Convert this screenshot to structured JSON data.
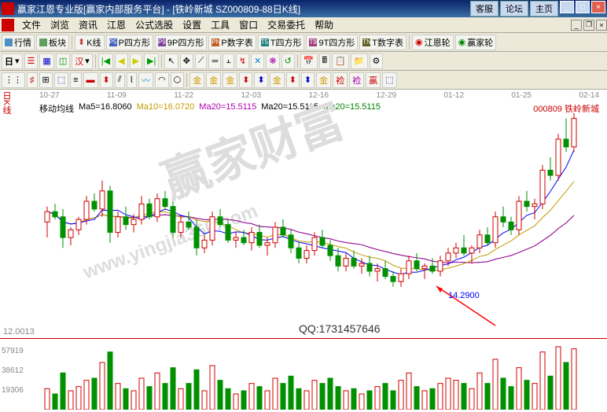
{
  "title": "赢家江恩专业版[赢家内部服务平台]  -  [铁岭新城   SZ000809-88日K线]",
  "headerBtns": {
    "kf": "客服",
    "lt": "论坛",
    "zy": "主页"
  },
  "menu": [
    "文件",
    "浏览",
    "资讯",
    "江恩",
    "公式选股",
    "设置",
    "工具",
    "窗口",
    "交易委托",
    "帮助"
  ],
  "tb1": {
    "hq": "行情",
    "bk": "板块",
    "kx": "K线",
    "pf": "P四方形",
    "pf9": "9P四方形",
    "psz": "P数字表",
    "tf": "T四方形",
    "tf9": "9T四方形",
    "tsz": "T数字表",
    "jel": "江恩轮",
    "yjl": "赢家轮"
  },
  "tb1Colors": {
    "hq": "#5090c0",
    "bk": "#60a060",
    "kx": "#c04040",
    "pf": "#4060c0",
    "pf9": "#8040a0",
    "psz": "#c06020",
    "tf": "#208080",
    "tf9": "#a04080",
    "tsz": "#606020"
  },
  "tb2": {
    "ri": "日"
  },
  "chart": {
    "ylabel": "日K线",
    "dates": [
      "10-27",
      "11-09",
      "11-22",
      "12-03",
      "12-16",
      "12-29",
      "01-12",
      "01-25",
      "02-14"
    ],
    "ma": {
      "label": "移动均线",
      "m5": "Ma5=16.8060",
      "m10": "Ma10=16.0720",
      "m20a": "Ma20=15.5115",
      "m20b": "Ma20=15.5115",
      "m20c": "Ma20=15.5115"
    },
    "maColors": {
      "m5": "#000",
      "m10": "#c49b00",
      "m20a": "#b000b0",
      "m20b": "#000",
      "m20c": "#008000"
    },
    "stockcode": "000809",
    "stockname": "铁岭新城",
    "ylim": [
      11.5,
      20
    ],
    "priceBase": 12.0013,
    "annotPrice": "14.2900",
    "annotX": 520,
    "annotY": 226,
    "candles": [
      {
        "x": 10,
        "o": 15.8,
        "h": 16.4,
        "l": 15.2,
        "c": 16.2,
        "u": 1
      },
      {
        "x": 20,
        "o": 16.2,
        "h": 16.5,
        "l": 15.9,
        "c": 16.0,
        "u": 0
      },
      {
        "x": 30,
        "o": 16.0,
        "h": 16.3,
        "l": 14.8,
        "c": 15.2,
        "u": 0
      },
      {
        "x": 40,
        "o": 15.2,
        "h": 15.6,
        "l": 14.9,
        "c": 15.5,
        "u": 1
      },
      {
        "x": 50,
        "o": 15.5,
        "h": 16.0,
        "l": 15.3,
        "c": 15.9,
        "u": 1
      },
      {
        "x": 60,
        "o": 15.9,
        "h": 16.8,
        "l": 15.7,
        "c": 16.6,
        "u": 1
      },
      {
        "x": 70,
        "o": 16.6,
        "h": 16.9,
        "l": 16.2,
        "c": 16.3,
        "u": 0
      },
      {
        "x": 80,
        "o": 16.3,
        "h": 17.4,
        "l": 16.0,
        "c": 17.0,
        "u": 1
      },
      {
        "x": 90,
        "o": 17.0,
        "h": 17.2,
        "l": 15.0,
        "c": 15.4,
        "u": 0
      },
      {
        "x": 100,
        "o": 15.4,
        "h": 16.2,
        "l": 15.2,
        "c": 16.0,
        "u": 1
      },
      {
        "x": 110,
        "o": 16.0,
        "h": 16.4,
        "l": 15.5,
        "c": 15.7,
        "u": 0
      },
      {
        "x": 120,
        "o": 15.7,
        "h": 16.1,
        "l": 15.4,
        "c": 15.9,
        "u": 1
      },
      {
        "x": 130,
        "o": 15.9,
        "h": 16.8,
        "l": 15.7,
        "c": 16.5,
        "u": 1
      },
      {
        "x": 140,
        "o": 16.5,
        "h": 16.7,
        "l": 15.9,
        "c": 16.0,
        "u": 0
      },
      {
        "x": 150,
        "o": 16.0,
        "h": 16.9,
        "l": 15.8,
        "c": 16.7,
        "u": 1
      },
      {
        "x": 160,
        "o": 16.7,
        "h": 17.0,
        "l": 16.3,
        "c": 16.4,
        "u": 0
      },
      {
        "x": 170,
        "o": 16.4,
        "h": 16.6,
        "l": 15.2,
        "c": 15.4,
        "u": 0
      },
      {
        "x": 180,
        "o": 15.4,
        "h": 16.0,
        "l": 15.2,
        "c": 15.8,
        "u": 1
      },
      {
        "x": 190,
        "o": 15.8,
        "h": 16.2,
        "l": 15.5,
        "c": 15.6,
        "u": 0
      },
      {
        "x": 200,
        "o": 15.6,
        "h": 15.9,
        "l": 14.5,
        "c": 14.8,
        "u": 0
      },
      {
        "x": 210,
        "o": 14.8,
        "h": 15.3,
        "l": 14.6,
        "c": 15.1,
        "u": 1
      },
      {
        "x": 220,
        "o": 15.1,
        "h": 16.2,
        "l": 14.9,
        "c": 16.0,
        "u": 1
      },
      {
        "x": 230,
        "o": 16.0,
        "h": 16.3,
        "l": 15.6,
        "c": 15.7,
        "u": 0
      },
      {
        "x": 240,
        "o": 15.7,
        "h": 15.9,
        "l": 15.0,
        "c": 15.1,
        "u": 0
      },
      {
        "x": 250,
        "o": 15.1,
        "h": 15.4,
        "l": 14.8,
        "c": 15.2,
        "u": 1
      },
      {
        "x": 260,
        "o": 15.2,
        "h": 15.5,
        "l": 14.9,
        "c": 15.0,
        "u": 0
      },
      {
        "x": 270,
        "o": 15.0,
        "h": 15.6,
        "l": 14.7,
        "c": 15.4,
        "u": 1
      },
      {
        "x": 280,
        "o": 15.4,
        "h": 15.7,
        "l": 14.8,
        "c": 14.9,
        "u": 0
      },
      {
        "x": 290,
        "o": 14.9,
        "h": 15.2,
        "l": 14.5,
        "c": 15.0,
        "u": 1
      },
      {
        "x": 300,
        "o": 15.0,
        "h": 15.8,
        "l": 14.8,
        "c": 15.6,
        "u": 1
      },
      {
        "x": 310,
        "o": 15.6,
        "h": 15.9,
        "l": 15.2,
        "c": 15.3,
        "u": 0
      },
      {
        "x": 320,
        "o": 15.3,
        "h": 15.5,
        "l": 14.6,
        "c": 14.8,
        "u": 0
      },
      {
        "x": 330,
        "o": 14.8,
        "h": 15.0,
        "l": 14.2,
        "c": 14.4,
        "u": 0
      },
      {
        "x": 340,
        "o": 14.4,
        "h": 14.9,
        "l": 14.2,
        "c": 14.7,
        "u": 1
      },
      {
        "x": 350,
        "o": 14.7,
        "h": 15.4,
        "l": 14.5,
        "c": 15.2,
        "u": 1
      },
      {
        "x": 360,
        "o": 15.2,
        "h": 15.5,
        "l": 14.8,
        "c": 14.9,
        "u": 0
      },
      {
        "x": 370,
        "o": 14.9,
        "h": 15.1,
        "l": 14.3,
        "c": 14.5,
        "u": 0
      },
      {
        "x": 380,
        "o": 14.5,
        "h": 14.8,
        "l": 13.9,
        "c": 14.1,
        "u": 0
      },
      {
        "x": 390,
        "o": 14.1,
        "h": 14.6,
        "l": 13.9,
        "c": 14.4,
        "u": 1
      },
      {
        "x": 400,
        "o": 14.4,
        "h": 14.7,
        "l": 14.0,
        "c": 14.1,
        "u": 0
      },
      {
        "x": 410,
        "o": 14.1,
        "h": 14.4,
        "l": 13.8,
        "c": 14.2,
        "u": 1
      },
      {
        "x": 420,
        "o": 14.2,
        "h": 14.5,
        "l": 13.7,
        "c": 13.9,
        "u": 0
      },
      {
        "x": 430,
        "o": 13.9,
        "h": 14.2,
        "l": 13.5,
        "c": 14.0,
        "u": 1
      },
      {
        "x": 440,
        "o": 14.0,
        "h": 14.3,
        "l": 13.6,
        "c": 13.7,
        "u": 0
      },
      {
        "x": 450,
        "o": 13.7,
        "h": 13.9,
        "l": 13.3,
        "c": 13.5,
        "u": 0
      },
      {
        "x": 460,
        "o": 13.5,
        "h": 14.0,
        "l": 13.3,
        "c": 13.8,
        "u": 1
      },
      {
        "x": 470,
        "o": 13.8,
        "h": 14.5,
        "l": 13.6,
        "c": 14.3,
        "u": 1
      },
      {
        "x": 480,
        "o": 14.3,
        "h": 14.6,
        "l": 13.9,
        "c": 14.0,
        "u": 0
      },
      {
        "x": 490,
        "o": 14.0,
        "h": 14.2,
        "l": 13.6,
        "c": 14.1,
        "u": 1
      },
      {
        "x": 500,
        "o": 14.1,
        "h": 14.4,
        "l": 13.8,
        "c": 13.9,
        "u": 0
      },
      {
        "x": 510,
        "o": 13.9,
        "h": 14.5,
        "l": 13.7,
        "c": 14.3,
        "u": 1
      },
      {
        "x": 520,
        "o": 14.3,
        "h": 14.8,
        "l": 14.1,
        "c": 14.6,
        "u": 1
      },
      {
        "x": 530,
        "o": 14.6,
        "h": 15.0,
        "l": 14.4,
        "c": 14.8,
        "u": 1
      },
      {
        "x": 540,
        "o": 14.8,
        "h": 15.3,
        "l": 14.5,
        "c": 14.6,
        "u": 0
      },
      {
        "x": 550,
        "o": 14.6,
        "h": 14.9,
        "l": 14.2,
        "c": 14.8,
        "u": 1
      },
      {
        "x": 560,
        "o": 14.8,
        "h": 15.5,
        "l": 14.6,
        "c": 15.3,
        "u": 1
      },
      {
        "x": 570,
        "o": 15.3,
        "h": 15.6,
        "l": 14.9,
        "c": 15.0,
        "u": 0
      },
      {
        "x": 580,
        "o": 15.0,
        "h": 16.2,
        "l": 14.8,
        "c": 16.0,
        "u": 1
      },
      {
        "x": 590,
        "o": 16.0,
        "h": 16.4,
        "l": 15.6,
        "c": 15.8,
        "u": 0
      },
      {
        "x": 600,
        "o": 15.8,
        "h": 16.0,
        "l": 15.3,
        "c": 15.5,
        "u": 0
      },
      {
        "x": 610,
        "o": 15.5,
        "h": 16.8,
        "l": 15.3,
        "c": 16.6,
        "u": 1
      },
      {
        "x": 620,
        "o": 16.6,
        "h": 17.0,
        "l": 16.2,
        "c": 16.4,
        "u": 0
      },
      {
        "x": 630,
        "o": 16.4,
        "h": 16.7,
        "l": 15.9,
        "c": 16.5,
        "u": 1
      },
      {
        "x": 640,
        "o": 16.5,
        "h": 18.0,
        "l": 16.3,
        "c": 17.8,
        "u": 1
      },
      {
        "x": 650,
        "o": 17.8,
        "h": 18.3,
        "l": 17.4,
        "c": 17.6,
        "u": 0
      },
      {
        "x": 660,
        "o": 17.6,
        "h": 19.2,
        "l": 17.4,
        "c": 19.0,
        "u": 1
      },
      {
        "x": 670,
        "o": 19.0,
        "h": 19.8,
        "l": 18.5,
        "c": 18.7,
        "u": 0
      },
      {
        "x": 680,
        "o": 18.7,
        "h": 20.0,
        "l": 18.5,
        "c": 19.8,
        "u": 1
      }
    ],
    "vol": {
      "ylabels": [
        57919,
        38612,
        19306
      ],
      "bars": [
        20,
        15,
        35,
        18,
        22,
        28,
        30,
        45,
        55,
        25,
        20,
        18,
        30,
        22,
        35,
        25,
        40,
        20,
        25,
        38,
        18,
        42,
        28,
        20,
        15,
        18,
        25,
        22,
        18,
        30,
        25,
        32,
        20,
        18,
        28,
        25,
        30,
        22,
        18,
        20,
        15,
        18,
        22,
        25,
        18,
        28,
        35,
        22,
        18,
        20,
        25,
        30,
        28,
        25,
        20,
        35,
        25,
        48,
        30,
        22,
        40,
        28,
        25,
        55,
        32,
        60,
        45,
        58
      ]
    },
    "arrowFrom": [
      580,
      270
    ],
    "arrowTo": [
      505,
      220
    ]
  },
  "qq": "QQ:1731457646",
  "wm1": "赢家财富",
  "wm2": "www.yingjia360.com"
}
